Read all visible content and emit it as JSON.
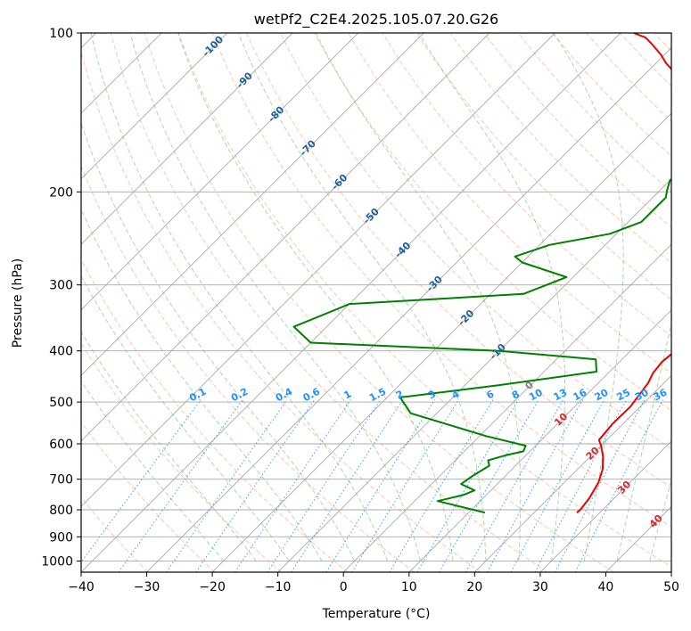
{
  "chart_data": {
    "type": "skew-t",
    "title": "wetPf2_C2E4.2025.105.07.20.G26",
    "xlabel": "Temperature (°C)",
    "ylabel": "Pressure (hPa)",
    "xlim": [
      -40,
      50
    ],
    "ylim": [
      1050,
      100
    ],
    "y_scale": "log",
    "grid": true,
    "x_ticks": [
      "−40",
      "−30",
      "−20",
      "−10",
      "0",
      "10",
      "20",
      "30",
      "40",
      "50"
    ],
    "y_ticks": [
      "1000",
      "900",
      "800",
      "700",
      "600",
      "500",
      "400",
      "300",
      "200",
      "100"
    ],
    "isotherm_labels": [
      "-100",
      "-90",
      "-80",
      "-70",
      "-60",
      "-50",
      "-40",
      "-30",
      "-20",
      "-10",
      "0",
      "10",
      "20",
      "30",
      "40"
    ],
    "mixing_ratio_labels": [
      "0.1",
      "0.2",
      "0.4",
      "0.6",
      "1",
      "1.5",
      "2",
      "3",
      "4",
      "6",
      "8",
      "10",
      "13",
      "16",
      "20",
      "25",
      "30",
      "36"
    ],
    "colors": {
      "temperature": "#ee0000",
      "dewpoint": "#008000",
      "isotherm_label_cold": "#1f5f9e",
      "isotherm_label_warm": "#d62728",
      "isotherm_label_zero": "#7f7f7f",
      "mixing_ratio": "#1e90ff",
      "dry_adiabat": "#ff7f50",
      "moist_adiabat": "#2ca02c",
      "grid": "#a9a9a9"
    },
    "series": [
      {
        "name": "",
        "kind": "temperature",
        "color": "#ee0000",
        "points": [
          [
            26.5,
            810
          ],
          [
            26.6,
            800
          ],
          [
            26.2,
            760
          ],
          [
            25.2,
            710
          ],
          [
            23.8,
            670
          ],
          [
            22.0,
            635
          ],
          [
            20.0,
            605
          ],
          [
            18.8,
            590
          ],
          [
            18.4,
            550
          ],
          [
            18.5,
            510
          ],
          [
            17.6,
            460
          ],
          [
            16.8,
            440
          ],
          [
            16.5,
            420
          ],
          [
            17.0,
            390
          ],
          [
            16.6,
            360
          ],
          [
            15.0,
            320
          ],
          [
            13.5,
            295
          ],
          [
            12.3,
            270
          ],
          [
            10.6,
            255
          ],
          [
            8.0,
            240
          ],
          [
            5.0,
            225
          ],
          [
            1.5,
            210
          ],
          [
            -2.0,
            195
          ],
          [
            -7.0,
            172
          ],
          [
            -12.0,
            155
          ],
          [
            -14.0,
            147
          ],
          [
            -15.5,
            140
          ],
          [
            -19.0,
            132
          ],
          [
            -24.0,
            122
          ],
          [
            -28.5,
            114
          ],
          [
            -30.5,
            110
          ],
          [
            -33.5,
            105
          ],
          [
            -35.5,
            102
          ],
          [
            -38.0,
            100
          ]
        ]
      },
      {
        "name": "",
        "kind": "dewpoint",
        "color": "#008000",
        "points": [
          [
            12.5,
            810
          ],
          [
            3.5,
            770
          ],
          [
            6.5,
            750
          ],
          [
            7.5,
            735
          ],
          [
            4.5,
            715
          ],
          [
            5.0,
            690
          ],
          [
            6.0,
            660
          ],
          [
            5.0,
            645
          ],
          [
            7.0,
            630
          ],
          [
            9.0,
            620
          ],
          [
            8.5,
            605
          ],
          [
            1.0,
            580
          ],
          [
            -14.0,
            525
          ],
          [
            -18.0,
            490
          ],
          [
            -5.0,
            465
          ],
          [
            8.0,
            438
          ],
          [
            6.0,
            415
          ],
          [
            -10.0,
            400
          ],
          [
            -40.0,
            386
          ],
          [
            -45.0,
            360
          ],
          [
            -40.0,
            326
          ],
          [
            -15.0,
            312
          ],
          [
            -11.0,
            290
          ],
          [
            -20.0,
            272
          ],
          [
            -22.0,
            265
          ],
          [
            -18.5,
            252
          ],
          [
            -11.0,
            240
          ],
          [
            -8.0,
            228
          ],
          [
            -8.0,
            215
          ],
          [
            -8.0,
            205
          ],
          [
            -9.0,
            198
          ],
          [
            -10.0,
            190
          ],
          [
            -9.0,
            180
          ],
          [
            -10.5,
            170
          ],
          [
            -13.0,
            150
          ],
          [
            -16.0,
            130
          ],
          [
            -18.5,
            115
          ],
          [
            -19.5,
            110
          ],
          [
            -20.0,
            105
          ],
          [
            -20.0,
            100
          ]
        ]
      }
    ]
  }
}
